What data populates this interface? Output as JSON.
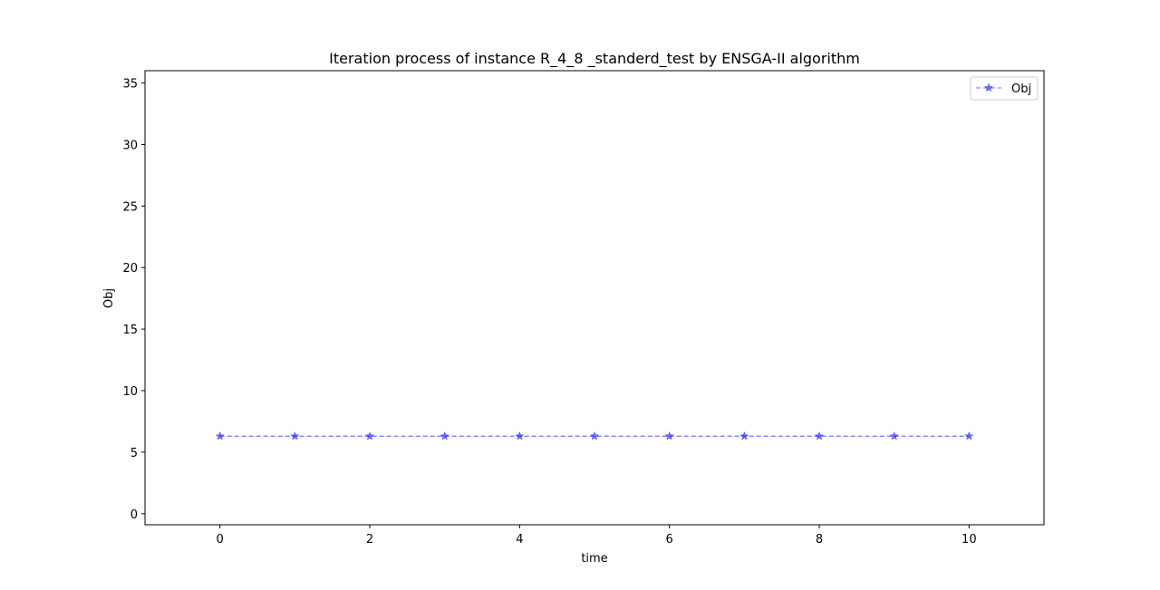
{
  "chart_data": {
    "type": "line",
    "title": "Iteration process of instance R_4_8 _standerd_test by ENSGA-II algorithm",
    "xlabel": "time",
    "ylabel": "Obj",
    "xlim": [
      -1,
      11
    ],
    "ylim": [
      -0.9,
      36
    ],
    "xticks": [
      0,
      2,
      4,
      6,
      8,
      10
    ],
    "yticks": [
      0,
      5,
      10,
      15,
      20,
      25,
      30,
      35
    ],
    "grid": false,
    "legend_position": "top-right",
    "series": [
      {
        "name": "Obj",
        "color": "#0000ff",
        "line_style": "dashed",
        "marker": "star",
        "x": [
          0,
          1,
          2,
          3,
          4,
          5,
          6,
          7,
          8,
          9,
          10
        ],
        "y": [
          6.3,
          6.3,
          6.3,
          6.3,
          6.3,
          6.3,
          6.3,
          6.3,
          6.3,
          6.3,
          6.3
        ]
      }
    ]
  }
}
